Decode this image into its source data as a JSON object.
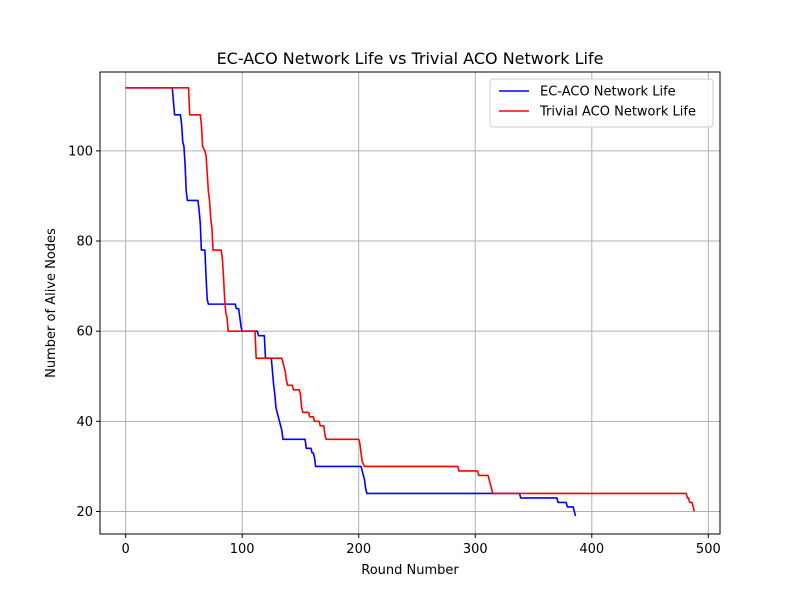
{
  "chart_data": {
    "type": "line",
    "title": "EC-ACO Network Life vs Trivial ACO Network Life",
    "xlabel": "Round Number",
    "ylabel": "Number of Alive Nodes",
    "xlim": [
      -22,
      510
    ],
    "ylim": [
      15,
      117.5
    ],
    "xticks": [
      0,
      100,
      200,
      300,
      400,
      500
    ],
    "yticks": [
      20,
      40,
      60,
      80,
      100
    ],
    "grid": true,
    "legend": "top-right",
    "series": [
      {
        "name": "EC-ACO Network Life",
        "color": "#0000ff",
        "x": [
          0,
          40,
          41,
          42,
          47,
          48,
          49,
          50,
          51,
          52,
          53,
          62,
          63,
          64,
          65,
          68,
          69,
          70,
          71,
          94,
          95,
          97,
          98,
          99,
          100,
          113,
          114,
          119,
          120,
          125,
          126,
          127,
          128,
          129,
          132,
          133,
          134,
          135,
          154,
          155,
          159,
          160,
          161,
          162,
          163,
          164,
          200,
          202,
          203,
          204,
          205,
          206,
          207,
          298,
          338,
          339,
          370,
          371,
          378,
          379,
          384,
          385,
          386
        ],
        "y": [
          114,
          114,
          111,
          108,
          108,
          106,
          102,
          101,
          97,
          91,
          89,
          89,
          87,
          84,
          78,
          78,
          72,
          67,
          66,
          66,
          65,
          65,
          63,
          61,
          60,
          60,
          59,
          59,
          54,
          54,
          51,
          48,
          46,
          43,
          40,
          39,
          38,
          36,
          36,
          34,
          34,
          33,
          33,
          32,
          30,
          30,
          30,
          30,
          29,
          28,
          27,
          25,
          24,
          24,
          24,
          23,
          23,
          22,
          22,
          21,
          21,
          20,
          19
        ]
      },
      {
        "name": "Trivial ACO Network Life",
        "color": "#ff0000",
        "x": [
          0,
          54,
          55,
          64,
          65,
          66,
          68,
          69,
          70,
          71,
          72,
          73,
          74,
          75,
          82,
          83,
          84,
          85,
          86,
          87,
          88,
          111,
          112,
          134,
          135,
          136,
          137,
          138,
          139,
          143,
          144,
          149,
          150,
          151,
          152,
          153,
          157,
          158,
          161,
          162,
          166,
          167,
          170,
          171,
          172,
          200,
          201,
          202,
          203,
          205,
          285,
          286,
          302,
          303,
          311,
          312,
          313,
          314,
          315,
          480,
          481,
          482,
          483,
          484,
          486,
          487,
          488
        ],
        "y": [
          114,
          114,
          108,
          108,
          106,
          101,
          100,
          99,
          95,
          91,
          89,
          85,
          83,
          78,
          78,
          76,
          72,
          67,
          64,
          63,
          60,
          60,
          54,
          54,
          53,
          52,
          51,
          49,
          48,
          48,
          47,
          47,
          46,
          43,
          42,
          42,
          42,
          41,
          41,
          40,
          40,
          39,
          39,
          37,
          36,
          36,
          35,
          33,
          31,
          30,
          30,
          29,
          29,
          28,
          28,
          27,
          26,
          25,
          24,
          24,
          24,
          23,
          23,
          22,
          22,
          21,
          20
        ]
      }
    ]
  }
}
